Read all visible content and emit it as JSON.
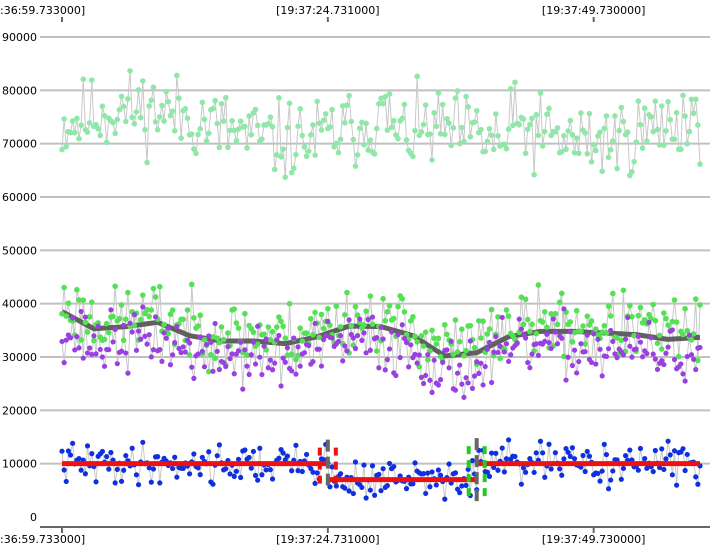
{
  "chart_data": {
    "type": "scatter",
    "title": "",
    "xlabel": "",
    "ylabel": "",
    "grid": true,
    "legend": "none",
    "x_ticks": [
      ":36:59.733000]",
      "[19:37:24.731000]",
      "[19:37:49.730000]"
    ],
    "y_ticks": [
      "0",
      "10000",
      "20000",
      "30000",
      "40000",
      "50000",
      "60000",
      "70000",
      "80000",
      "90000"
    ],
    "ylim": [
      0,
      91000
    ],
    "x_range_points": [
      0,
      600
    ],
    "x_tick_positions": [
      0,
      250,
      500
    ],
    "series": [
      {
        "color": "#90e8a8",
        "marker": "circle",
        "line_color": "#c8c8c8",
        "mean": 73500,
        "spread": 5200,
        "seed": 11,
        "values_note_points": 600
      },
      {
        "color": "#55e055",
        "marker": "circle",
        "line_color": "#c8c8c8",
        "mean": 34000,
        "spread": 4200,
        "seed": 23
      },
      {
        "color": "#9a40e0",
        "marker": "star",
        "line_color": "#c8c8c8",
        "mean": 30500,
        "spread": 4000,
        "seed": 37
      },
      {
        "color": "#1030e0",
        "marker": "star",
        "line_color": "#c8c8c8",
        "mean": 9500,
        "spread": 2600,
        "seed": 41
      }
    ],
    "trend_line": {
      "color": "#606060",
      "x": [
        0,
        30,
        60,
        90,
        120,
        150,
        180,
        210,
        240,
        270,
        300,
        330,
        360,
        390,
        420,
        450,
        480,
        510,
        540,
        570,
        600
      ],
      "y": [
        38500,
        35300,
        35700,
        36500,
        34000,
        33000,
        33000,
        32500,
        33800,
        35800,
        35700,
        34000,
        30200,
        30800,
        33800,
        34800,
        34800,
        34500,
        34200,
        33300,
        33700
      ]
    },
    "segments": {
      "color": "#ee1111",
      "items": [
        {
          "x": [
            0,
            250
          ],
          "y": 10000
        },
        {
          "x": [
            250,
            390
          ],
          "y": 7000
        },
        {
          "x": [
            390,
            600
          ],
          "y": 10000
        }
      ]
    },
    "change_points": [
      {
        "x": 250,
        "y_range": [
          5000,
          14500
        ],
        "marker_color": "#ee1111"
      },
      {
        "x": 390,
        "y_range": [
          2500,
          14800
        ],
        "marker_color": "#22cc22"
      }
    ]
  }
}
